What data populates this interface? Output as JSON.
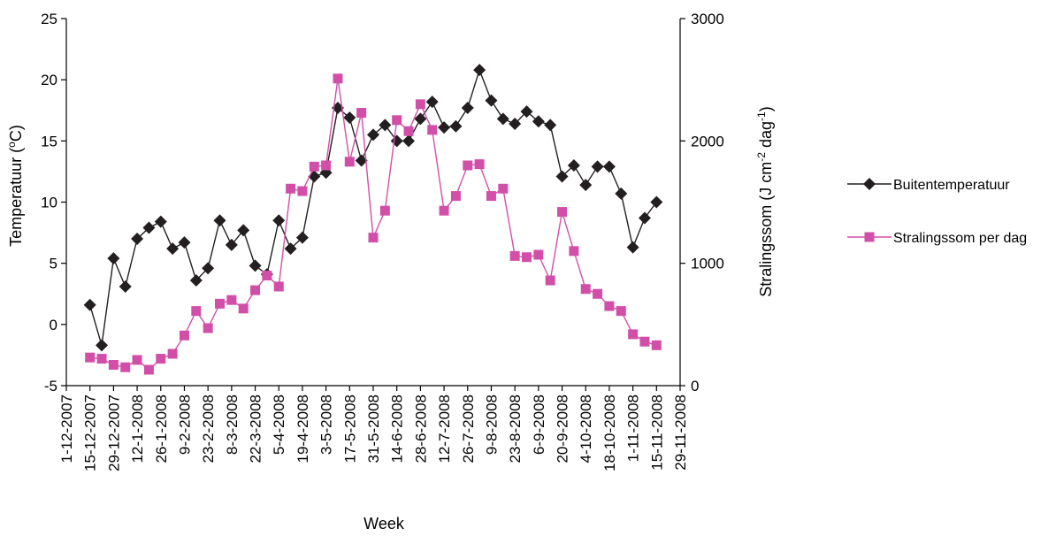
{
  "chart_data": {
    "type": "line",
    "xlabel": "Week",
    "ylabel_left": "Temperatuur  (oC)",
    "ylabel_right": "Stralingssom  (J cm-2 dag-1)",
    "ylim_left": [
      -5,
      25
    ],
    "yticks_left": [
      "-5",
      "0",
      "5",
      "10",
      "15",
      "20",
      "25"
    ],
    "ylim_right": [
      0,
      3000
    ],
    "yticks_right": [
      "0",
      "1000",
      "2000",
      "3000"
    ],
    "xlim": [
      "1-12-2007",
      "29-11-2008"
    ],
    "xtick_labels": [
      "1-12-2007",
      "15-12-2007",
      "29-12-2007",
      "12-1-2008",
      "26-1-2008",
      "9-2-2008",
      "23-2-2008",
      "8-3-2008",
      "22-3-2008",
      "5-4-2008",
      "19-4-2008",
      "3-5-2008",
      "17-5-2008",
      "31-5-2008",
      "14-6-2008",
      "28-6-2008",
      "12-7-2008",
      "26-7-2008",
      "9-8-2008",
      "23-8-2008",
      "6-9-2008",
      "20-9-2008",
      "4-10-2008",
      "18-10-2008",
      "1-11-2008",
      "15-11-2008",
      "29-11-2008"
    ],
    "x": [
      "15-12-2007",
      "22-12-2007",
      "29-12-2007",
      "5-1-2008",
      "12-1-2008",
      "19-1-2008",
      "26-1-2008",
      "2-2-2008",
      "9-2-2008",
      "16-2-2008",
      "23-2-2008",
      "1-3-2008",
      "8-3-2008",
      "15-3-2008",
      "22-3-2008",
      "29-3-2008",
      "5-4-2008",
      "12-4-2008",
      "19-4-2008",
      "26-4-2008",
      "3-5-2008",
      "10-5-2008",
      "17-5-2008",
      "24-5-2008",
      "31-5-2008",
      "7-6-2008",
      "14-6-2008",
      "21-6-2008",
      "28-6-2008",
      "5-7-2008",
      "12-7-2008",
      "19-7-2008",
      "26-7-2008",
      "2-8-2008",
      "9-8-2008",
      "16-8-2008",
      "23-8-2008",
      "30-8-2008",
      "6-9-2008",
      "13-9-2008",
      "20-9-2008",
      "27-9-2008",
      "4-10-2008",
      "11-10-2008",
      "18-10-2008",
      "25-10-2008",
      "1-11-2008",
      "8-11-2008",
      "15-11-2008"
    ],
    "series": [
      {
        "name": "Buitentemperatuur",
        "axis": "left",
        "color": "#231f20",
        "marker": "diamond",
        "values": [
          1.6,
          -1.7,
          5.4,
          3.1,
          7.0,
          7.9,
          8.4,
          6.2,
          6.7,
          3.6,
          4.6,
          8.5,
          6.5,
          7.7,
          4.8,
          4.1,
          8.5,
          6.2,
          7.1,
          12.1,
          12.4,
          17.7,
          16.9,
          13.4,
          15.5,
          16.3,
          15.0,
          15.0,
          16.8,
          18.2,
          16.1,
          16.2,
          17.7,
          20.8,
          18.3,
          16.8,
          16.4,
          17.4,
          16.6,
          16.3,
          12.1,
          13.0,
          11.4,
          12.9,
          12.9,
          10.7,
          6.3,
          8.7,
          10.0
        ]
      },
      {
        "name": "Stralingssom per dag",
        "axis": "right",
        "color": "#d24fa9",
        "marker": "square",
        "values": [
          230,
          220,
          170,
          150,
          210,
          130,
          220,
          260,
          410,
          610,
          470,
          670,
          700,
          630,
          780,
          900,
          810,
          1610,
          1590,
          1790,
          1800,
          2510,
          1830,
          2230,
          1210,
          1430,
          2170,
          2080,
          2300,
          2090,
          1430,
          1550,
          1800,
          1810,
          1550,
          1610,
          1060,
          1050,
          1070,
          860,
          1420,
          1100,
          790,
          750,
          650,
          610,
          420,
          360,
          330
        ]
      }
    ],
    "legend_position": "right",
    "grid": false
  }
}
